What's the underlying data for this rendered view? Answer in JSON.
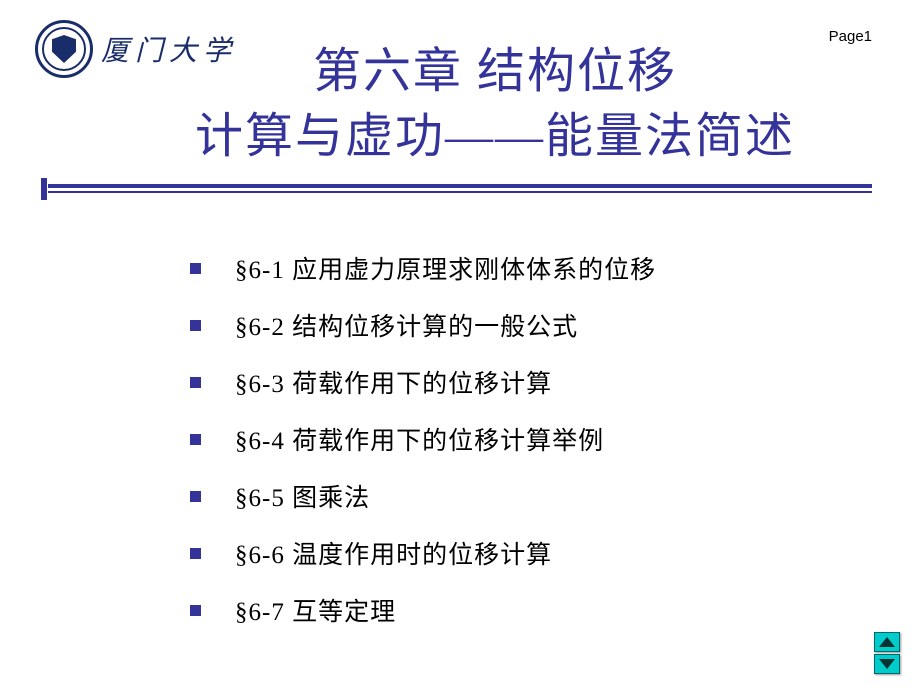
{
  "header": {
    "university_name": "厦门大学",
    "page_label": "Page1"
  },
  "title": {
    "line1": "第六章 结构位移",
    "line2": "计算与虚功——能量法简述"
  },
  "sections": [
    "§6-1  应用虚力原理求刚体体系的位移",
    "§6-2  结构位移计算的一般公式",
    "§6-3  荷载作用下的位移计算",
    "§6-4  荷载作用下的位移计算举例",
    "§6-5  图乘法",
    "§6-6  温度作用时的位移计算",
    "§6-7  互等定理"
  ],
  "colors": {
    "title_color": "#333399",
    "text_color": "#000000",
    "bullet_color": "#333399",
    "logo_color": "#1a2d6b",
    "nav_color": "#00cccc"
  },
  "fonts": {
    "title_size_pt": 36,
    "body_size_pt": 19,
    "logo_text_size_pt": 21
  }
}
